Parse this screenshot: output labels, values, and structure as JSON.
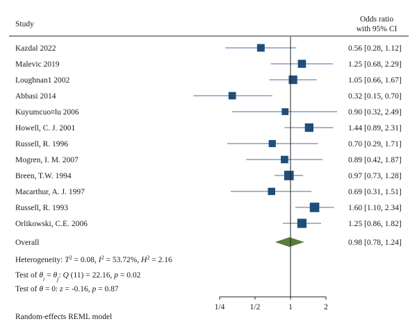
{
  "chart_data": {
    "type": "forest",
    "header": {
      "study": "Study",
      "effect_line1": "Odds ratio",
      "effect_line2": "with 95% CI"
    },
    "studies": [
      {
        "label": "Kazdal 2022",
        "or": 0.56,
        "lo": 0.28,
        "hi": 1.12,
        "ci_text": "0.56 [0.28, 1.12]",
        "weight": 0.55
      },
      {
        "label": "Malevic 2019",
        "or": 1.25,
        "lo": 0.68,
        "hi": 2.29,
        "ci_text": "1.25 [0.68, 2.29]",
        "weight": 0.62
      },
      {
        "label": "Loughnan1 2002",
        "or": 1.05,
        "lo": 0.66,
        "hi": 1.67,
        "ci_text": "1.05 [0.66, 1.67]",
        "weight": 0.7
      },
      {
        "label": "Abbasi 2014",
        "or": 0.32,
        "lo": 0.15,
        "hi": 0.7,
        "ci_text": "0.32 [0.15, 0.70]",
        "weight": 0.52
      },
      {
        "label": "Kuyumcuo¤lu 2006",
        "or": 0.9,
        "lo": 0.32,
        "hi": 2.49,
        "ci_text": "0.90 [0.32, 2.49]",
        "weight": 0.42
      },
      {
        "label": "Howell, C. J. 2001",
        "or": 1.44,
        "lo": 0.89,
        "hi": 2.31,
        "ci_text": "1.44 [0.89, 2.31]",
        "weight": 0.7
      },
      {
        "label": "Russell, R. 1996",
        "or": 0.7,
        "lo": 0.29,
        "hi": 1.71,
        "ci_text": "0.70 [0.29, 1.71]",
        "weight": 0.47
      },
      {
        "label": "Mogren, I. M. 2007",
        "or": 0.89,
        "lo": 0.42,
        "hi": 1.87,
        "ci_text": "0.89 [0.42, 1.87]",
        "weight": 0.53
      },
      {
        "label": "Breen, T.W. 1994",
        "or": 0.97,
        "lo": 0.73,
        "hi": 1.28,
        "ci_text": "0.97 [0.73, 1.28]",
        "weight": 0.85
      },
      {
        "label": "Macarthur, A. J. 1997",
        "or": 0.69,
        "lo": 0.31,
        "hi": 1.51,
        "ci_text": "0.69 [0.31, 1.51]",
        "weight": 0.5
      },
      {
        "label": "Russell, R. 1993",
        "or": 1.6,
        "lo": 1.1,
        "hi": 2.34,
        "ci_text": "1.60 [1.10, 2.34]",
        "weight": 0.85
      },
      {
        "label": "Orlikowski, C.E. 2006",
        "or": 1.25,
        "lo": 0.86,
        "hi": 1.82,
        "ci_text": "1.25 [0.86, 1.82]",
        "weight": 0.8
      }
    ],
    "overall": {
      "label": "Overall",
      "or": 0.98,
      "lo": 0.78,
      "hi": 1.24,
      "ci_text": "0.98 [0.78, 1.24]"
    },
    "xaxis": {
      "scale": "log2",
      "ticks": [
        0.25,
        0.5,
        1,
        2
      ],
      "tick_labels": [
        "1/4",
        "1/2",
        "1",
        "2"
      ]
    },
    "colors": {
      "marker": "#1f4e79",
      "ci_line": "#4a6b96",
      "diamond": "#5a7d3a",
      "axis": "#222222",
      "rule": "#222222"
    }
  },
  "stats": {
    "heterogeneity": {
      "prefix": "Heterogeneity: ",
      "tau": "T",
      "tau_sup": "2",
      "tau_val": " = 0.08, ",
      "i": "I",
      "i_sup": "2",
      "i_val": " = 53.72%, ",
      "h": "H",
      "h_sup": "2",
      "h_val": " = 2.16"
    },
    "test_theta_eq": {
      "prefix": "Test of ",
      "t1": "θ",
      "s1": "i",
      "eq": " = ",
      "t2": "θ",
      "s2": "j",
      "colon": ": ",
      "q": "Q",
      "q_val": " (11) = 22.16, ",
      "p": "p",
      "p_val": " = 0.02"
    },
    "test_theta_zero": {
      "prefix": "Test of ",
      "t": "θ",
      "rest": " = 0: ",
      "z": "z",
      "z_val": " = -0.16, ",
      "p": "p",
      "p_val": " = 0.87"
    }
  },
  "footer": "Random-effects REML model"
}
